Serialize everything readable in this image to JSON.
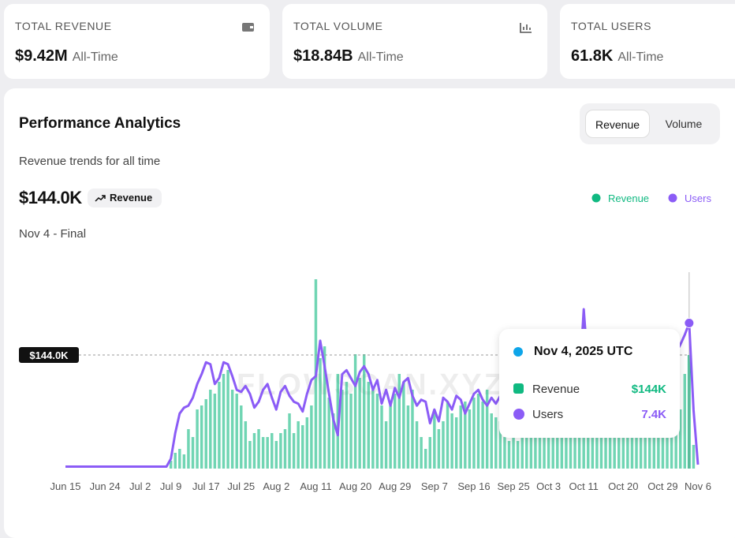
{
  "stats": [
    {
      "label": "TOTAL REVENUE",
      "value": "$9.42M",
      "period": "All-Time"
    },
    {
      "label": "TOTAL VOLUME",
      "value": "$18.84B",
      "period": "All-Time"
    },
    {
      "label": "TOTAL USERS",
      "value": "61.8K",
      "period": "All-Time"
    }
  ],
  "panel": {
    "title": "Performance Analytics",
    "subtitle": "Revenue trends for all time",
    "tabs": [
      "Revenue",
      "Volume"
    ],
    "headline": "$144.0K",
    "badge": "Revenue",
    "period": "Nov 4 - Final",
    "watermark": "FLOWSCAN.XYZ"
  },
  "chart_data": {
    "type": "combo",
    "categories": [
      "Jun 15",
      null,
      null,
      null,
      null,
      null,
      null,
      null,
      null,
      "Jun 24",
      null,
      null,
      null,
      null,
      null,
      null,
      null,
      "Jul 2",
      null,
      null,
      null,
      null,
      null,
      null,
      "Jul 9",
      null,
      null,
      null,
      null,
      null,
      null,
      null,
      "Jul 17",
      null,
      null,
      null,
      null,
      null,
      null,
      null,
      "Jul 25",
      null,
      null,
      null,
      null,
      null,
      null,
      null,
      "Aug 2",
      null,
      null,
      null,
      null,
      null,
      null,
      null,
      null,
      "Aug 11",
      null,
      null,
      null,
      null,
      null,
      null,
      null,
      null,
      "Aug 20",
      null,
      null,
      null,
      null,
      null,
      null,
      null,
      null,
      "Aug 29",
      null,
      null,
      null,
      null,
      null,
      null,
      null,
      null,
      "Sep 7",
      null,
      null,
      null,
      null,
      null,
      null,
      null,
      null,
      "Sep 16",
      null,
      null,
      null,
      null,
      null,
      null,
      null,
      null,
      "Sep 25",
      null,
      null,
      null,
      null,
      null,
      null,
      null,
      "Oct 3",
      null,
      null,
      null,
      null,
      null,
      null,
      null,
      "Oct 11",
      null,
      null,
      null,
      null,
      null,
      null,
      null,
      null,
      "Oct 20",
      null,
      null,
      null,
      null,
      null,
      null,
      null,
      null,
      "Oct 29",
      null,
      null,
      null,
      null,
      null,
      null,
      null,
      "Nov 6"
    ],
    "series": [
      {
        "name": "Revenue",
        "color": "#10b981",
        "values": [
          0,
          0,
          0,
          0,
          0,
          0,
          0,
          0,
          0,
          0,
          0,
          0,
          0,
          0,
          0,
          0,
          0,
          0,
          0,
          0,
          0,
          0,
          0,
          0,
          10,
          20,
          25,
          18,
          50,
          40,
          75,
          80,
          88,
          100,
          95,
          110,
          120,
          125,
          100,
          95,
          80,
          60,
          35,
          45,
          50,
          40,
          40,
          45,
          35,
          45,
          50,
          70,
          45,
          60,
          55,
          65,
          80,
          240,
          140,
          155,
          90,
          70,
          120,
          100,
          110,
          95,
          145,
          115,
          145,
          110,
          100,
          95,
          80,
          60,
          80,
          95,
          120,
          110,
          80,
          100,
          60,
          40,
          25,
          40,
          75,
          50,
          60,
          85,
          70,
          65,
          80,
          85,
          75,
          90,
          95,
          85,
          100,
          70,
          65,
          60,
          40,
          35,
          45,
          35,
          50,
          40,
          45,
          55,
          50,
          40,
          45,
          40,
          50,
          55,
          45,
          50,
          55,
          60,
          60,
          55,
          50,
          60,
          55,
          50,
          55,
          60,
          45,
          50,
          55,
          50,
          55,
          60,
          50,
          55,
          60,
          55,
          60,
          65,
          70,
          80,
          75,
          120,
          144,
          30,
          0
        ]
      },
      {
        "name": "Users",
        "color": "#8b5cf6",
        "values": [
          0.1,
          0.1,
          0.1,
          0.1,
          0.1,
          0.1,
          0.1,
          0.1,
          0.1,
          0.1,
          0.1,
          0.1,
          0.1,
          0.1,
          0.1,
          0.1,
          0.1,
          0.1,
          0.1,
          0.1,
          0.1,
          0.1,
          0.1,
          0.1,
          0.5,
          1.8,
          2.8,
          3.1,
          3.2,
          3.6,
          4.3,
          4.8,
          5.4,
          5.3,
          4.3,
          4.6,
          5.4,
          5.3,
          4.7,
          4.0,
          3.9,
          4.2,
          3.8,
          3.1,
          3.4,
          4.0,
          4.3,
          3.6,
          3.0,
          3.9,
          4.2,
          3.7,
          3.4,
          3.3,
          2.9,
          3.8,
          4.5,
          4.7,
          6.5,
          5.2,
          3.8,
          2.5,
          1.7,
          4.8,
          5.0,
          4.6,
          4.2,
          4.9,
          5.2,
          4.8,
          4.0,
          4.5,
          3.3,
          4.0,
          3.2,
          4.1,
          3.6,
          4.4,
          4.6,
          3.7,
          3.2,
          3.5,
          3.4,
          2.3,
          3.0,
          2.4,
          3.6,
          3.4,
          3.0,
          3.7,
          3.5,
          2.8,
          3.3,
          3.8,
          4.0,
          3.5,
          3.2,
          3.6,
          3.3,
          3.7,
          3.4,
          3.5,
          3.6,
          3.8,
          4.0,
          3.7,
          3.5,
          3.9,
          4.1,
          3.8,
          4.0,
          4.3,
          4.1,
          3.9,
          4.2,
          4.4,
          4.5,
          4.3,
          8.1,
          5.0,
          4.6,
          4.4,
          4.7,
          4.5,
          4.3,
          4.6,
          4.8,
          4.7,
          4.9,
          5.0,
          4.8,
          5.1,
          5.3,
          5.0,
          5.2,
          5.4,
          5.6,
          5.8,
          6.0,
          5.9,
          6.3,
          6.8,
          7.4,
          3.0,
          0.2
        ]
      }
    ],
    "reference": {
      "value": 144,
      "label": "$144.0K"
    },
    "tooltip": {
      "title": "Nov 4, 2025 UTC",
      "values": [
        144,
        7.4
      ],
      "value_labels": [
        "$144K",
        "7.4K"
      ]
    }
  }
}
